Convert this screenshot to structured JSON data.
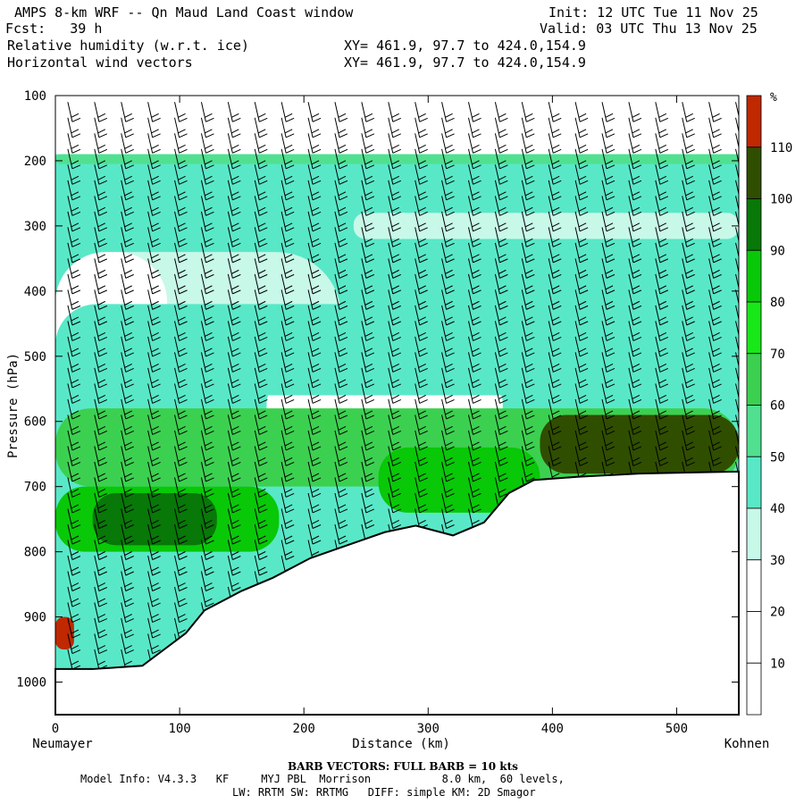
{
  "header": {
    "title": "AMPS 8-km WRF -- Qn Maud Land Coast window",
    "forecast": "Fcst:   39 h",
    "field1": "Relative humidity (w.r.t. ice)",
    "field2": "Horizontal wind vectors",
    "init": "Init: 12 UTC Tue 11 Nov 25",
    "valid": "Valid: 03 UTC Thu 13 Nov 25",
    "xy1": "XY= 461.9, 97.7 to 424.0,154.9",
    "xy2": "XY= 461.9, 97.7 to 424.0,154.9"
  },
  "footer": {
    "barb_note": "BARB VECTORS:  FULL BARB = 10 kts",
    "model_info": "Model Info: V4.3.3   KF     MYJ PBL  Morrison           8.0 km,  60 levels,",
    "physics": "LW: RRTM SW: RRTMG   DIFF: simple KM: 2D Smagor"
  },
  "chart_data": {
    "type": "heatmap",
    "title": "Relative humidity (w.r.t. ice)",
    "xlabel": "Distance (km)",
    "ylabel": "Pressure (hPa)",
    "xlim": [
      0,
      550
    ],
    "ylim": [
      1050,
      100
    ],
    "x_ticks": [
      0,
      100,
      200,
      300,
      400,
      500
    ],
    "y_ticks": [
      100,
      200,
      300,
      400,
      500,
      600,
      700,
      800,
      900,
      1000
    ],
    "x_end_labels": {
      "left": "Neumayer",
      "right": "Kohnen"
    },
    "colorbar": {
      "unit": "%",
      "levels": [
        10,
        20,
        30,
        40,
        50,
        60,
        70,
        80,
        90,
        100,
        110
      ],
      "colors": [
        "#ffffff",
        "#ffffff",
        "#ffffff",
        "#c8f8e8",
        "#58e8c8",
        "#50e090",
        "#3cd050",
        "#18e818",
        "#08c808",
        "#087808",
        "#304e00",
        "#c02800"
      ]
    },
    "terrain": {
      "distance_km": [
        0,
        30,
        70,
        105,
        120,
        150,
        175,
        205,
        235,
        265,
        290,
        320,
        345,
        365,
        385,
        420,
        470,
        550
      ],
      "pressure_hpa": [
        980,
        980,
        975,
        925,
        890,
        860,
        840,
        810,
        790,
        770,
        760,
        775,
        755,
        710,
        690,
        685,
        680,
        677
      ]
    },
    "rh_shading": {
      "levels_pct": [
        10,
        20,
        30,
        40,
        50,
        60,
        70,
        80,
        90,
        100,
        110
      ],
      "regions": [
        {
          "rh_pct": 45,
          "distance_km": [
            0,
            550
          ],
          "pressure_hpa": [
            260,
            195
          ]
        },
        {
          "rh_pct": 50,
          "distance_km": [
            0,
            550
          ],
          "pressure_hpa": [
            205,
            190
          ]
        },
        {
          "rh_pct": 35,
          "distance_km": [
            0,
            230
          ],
          "pressure_hpa": [
            560,
            340
          ]
        },
        {
          "rh_pct": 35,
          "distance_km": [
            240,
            550
          ],
          "pressure_hpa": [
            320,
            280
          ]
        },
        {
          "rh_pct": 15,
          "distance_km": [
            0,
            90
          ],
          "pressure_hpa": [
            560,
            340
          ]
        },
        {
          "rh_pct": 15,
          "distance_km": [
            170,
            360
          ],
          "pressure_hpa": [
            610,
            540
          ]
        },
        {
          "rh_pct": 45,
          "distance_km": [
            0,
            550
          ],
          "pressure_hpa": [
            560,
            420
          ]
        },
        {
          "rh_pct": 65,
          "distance_km": [
            0,
            550
          ],
          "pressure_hpa": [
            700,
            580
          ]
        },
        {
          "rh_pct": 85,
          "distance_km": [
            0,
            180
          ],
          "pressure_hpa": [
            800,
            700
          ]
        },
        {
          "rh_pct": 95,
          "distance_km": [
            30,
            130
          ],
          "pressure_hpa": [
            790,
            710
          ]
        },
        {
          "rh_pct": 85,
          "distance_km": [
            260,
            390
          ],
          "pressure_hpa": [
            740,
            640
          ]
        },
        {
          "rh_pct": 105,
          "distance_km": [
            390,
            550
          ],
          "pressure_hpa": [
            680,
            590
          ]
        },
        {
          "rh_pct": 115,
          "distance_km": [
            0,
            15
          ],
          "pressure_hpa": [
            950,
            900
          ]
        }
      ]
    },
    "wind_barbs": "full barb = 10 kts"
  }
}
